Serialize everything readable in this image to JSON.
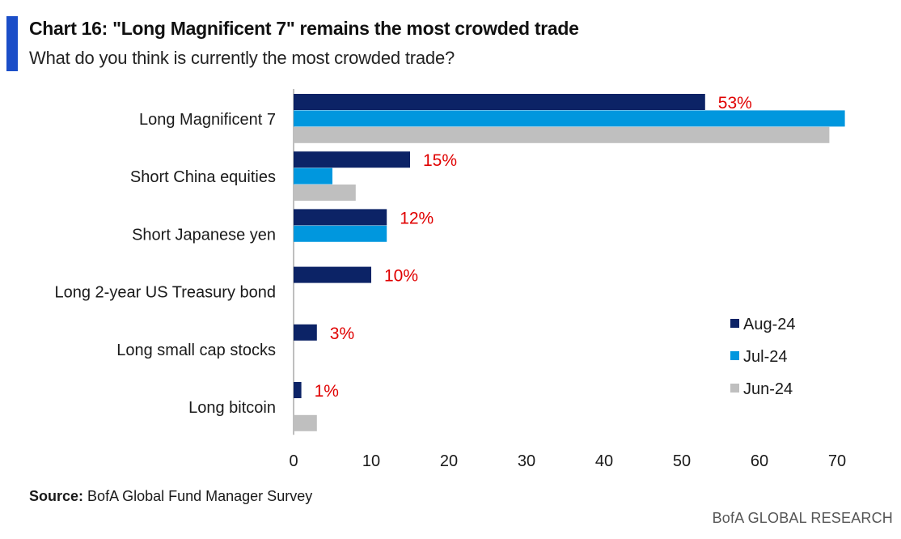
{
  "header": {
    "title": "Chart 16: \"Long Magnificent 7\" remains the most crowded trade",
    "subtitle": "What do you think is currently the most crowded trade?"
  },
  "footer": {
    "source_label": "Source:",
    "source_text": "BofA Global Fund Manager Survey",
    "brand": "BofA GLOBAL RESEARCH"
  },
  "chart_data": {
    "type": "bar",
    "orientation": "horizontal",
    "title": "Chart 16: \"Long Magnificent 7\" remains the most crowded trade",
    "subtitle": "What do you think is currently the most crowded trade?",
    "categories": [
      "Long Magnificent 7",
      "Short China equities",
      "Short Japanese yen",
      "Long 2-year US Treasury bond",
      "Long small cap stocks",
      "Long bitcoin"
    ],
    "series": [
      {
        "name": "Aug-24",
        "color": "#0c2366",
        "values": [
          53,
          15,
          12,
          10,
          3,
          1
        ]
      },
      {
        "name": "Jul-24",
        "color": "#0097de",
        "values": [
          71,
          5,
          12,
          null,
          null,
          null
        ]
      },
      {
        "name": "Jun-24",
        "color": "#bfbfbf",
        "values": [
          69,
          8,
          null,
          null,
          null,
          3
        ]
      }
    ],
    "data_labels": [
      "53%",
      "15%",
      "12%",
      "10%",
      "3%",
      "1%"
    ],
    "data_label_color": "#e00000",
    "xlim": [
      0,
      70
    ],
    "xticks": [
      0,
      10,
      20,
      30,
      40,
      50,
      60,
      70
    ],
    "xlabel": "",
    "ylabel": "",
    "grid": false,
    "legend_position": "right"
  }
}
